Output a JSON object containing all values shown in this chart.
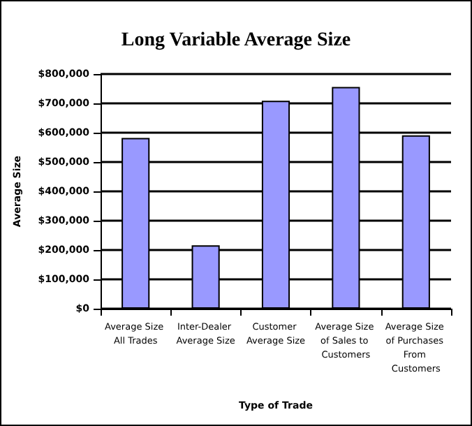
{
  "chart_data": {
    "type": "bar",
    "title": "Long Variable Average Size",
    "xlabel": "Type of Trade",
    "ylabel": "Average Size",
    "categories": [
      "Average Size All Trades",
      "Inter-Dealer Average Size",
      "Customer Average Size",
      "Average Size of Sales to Customers",
      "Average Size of Purchases From Customers"
    ],
    "values": [
      582000,
      216000,
      709000,
      756000,
      591000
    ],
    "color": "#9999ff",
    "ylim": [
      0,
      800000
    ],
    "yticks": [
      {
        "value": 0,
        "label": "$0"
      },
      {
        "value": 100000,
        "label": "$100,000"
      },
      {
        "value": 200000,
        "label": "$200,000"
      },
      {
        "value": 300000,
        "label": "$300,000"
      },
      {
        "value": 400000,
        "label": "$400,000"
      },
      {
        "value": 500000,
        "label": "$500,000"
      },
      {
        "value": 600000,
        "label": "$600,000"
      },
      {
        "value": 700000,
        "label": "$700,000"
      },
      {
        "value": 800000,
        "label": "$800,000"
      }
    ],
    "grid": "y"
  }
}
